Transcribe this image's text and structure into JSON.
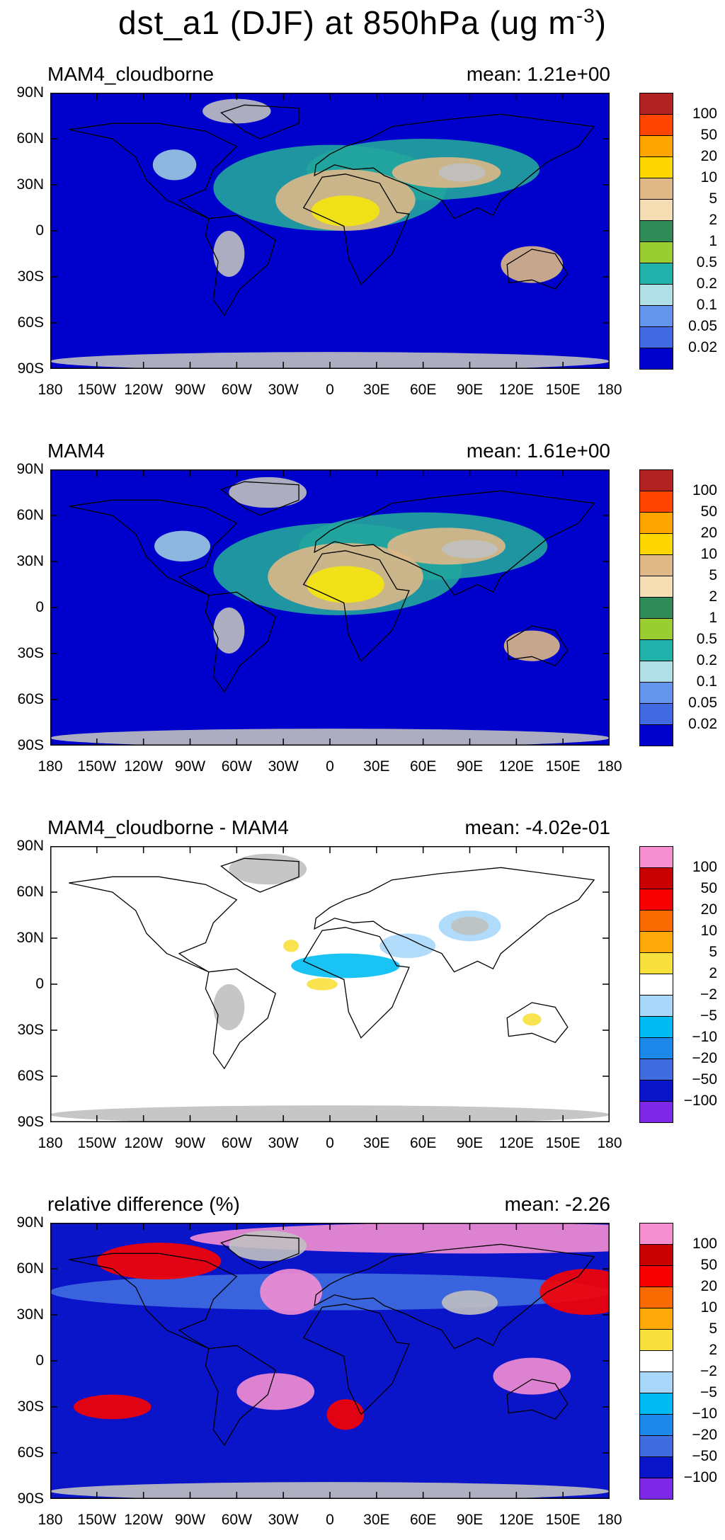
{
  "figure": {
    "title_main": "dst_a1 (DJF) at 850hPa (ug m",
    "title_exp": "-3",
    "title_close": ")"
  },
  "panels": [
    {
      "title": "MAM4_cloudborne",
      "mean": "mean:  1.21e+00",
      "palette": "concentration",
      "blobs": [
        {
          "lon": -60,
          "lat": 78,
          "rx": 22,
          "ry": 8,
          "color": "#c0c0c0"
        },
        {
          "lon": -100,
          "lat": 43,
          "rx": 14,
          "ry": 10,
          "color": "#9ccbe0"
        },
        {
          "lon": 0,
          "lat": 28,
          "rx": 75,
          "ry": 28,
          "color": "#22a59d"
        },
        {
          "lon": 60,
          "lat": 40,
          "rx": 75,
          "ry": 20,
          "color": "#22a59d"
        },
        {
          "lon": 10,
          "lat": 20,
          "rx": 45,
          "ry": 20,
          "color": "#ddb887"
        },
        {
          "lon": 75,
          "lat": 38,
          "rx": 35,
          "ry": 10,
          "color": "#ddb887"
        },
        {
          "lon": 10,
          "lat": 13,
          "rx": 22,
          "ry": 10,
          "color": "#f5e60b"
        },
        {
          "lon": 85,
          "lat": 38,
          "rx": 15,
          "ry": 6,
          "color": "#c0c0c0"
        },
        {
          "lon": 130,
          "lat": -22,
          "rx": 20,
          "ry": 12,
          "color": "#ddb887"
        },
        {
          "lon": -65,
          "lat": -15,
          "rx": 10,
          "ry": 15,
          "color": "#c0c0c0"
        },
        {
          "lon": 0,
          "lat": -85,
          "rx": 180,
          "ry": 6,
          "color": "#c0c0c0"
        }
      ]
    },
    {
      "title": "MAM4",
      "mean": "mean:  1.61e+00",
      "palette": "concentration",
      "blobs": [
        {
          "lon": -40,
          "lat": 75,
          "rx": 25,
          "ry": 10,
          "color": "#c0c0c0"
        },
        {
          "lon": -95,
          "lat": 40,
          "rx": 18,
          "ry": 10,
          "color": "#9ccbe0"
        },
        {
          "lon": 5,
          "lat": 25,
          "rx": 80,
          "ry": 30,
          "color": "#22a59d"
        },
        {
          "lon": 60,
          "lat": 40,
          "rx": 80,
          "ry": 22,
          "color": "#22a59d"
        },
        {
          "lon": 10,
          "lat": 20,
          "rx": 50,
          "ry": 22,
          "color": "#ddb887"
        },
        {
          "lon": 75,
          "lat": 40,
          "rx": 38,
          "ry": 12,
          "color": "#ddb887"
        },
        {
          "lon": 10,
          "lat": 15,
          "rx": 25,
          "ry": 12,
          "color": "#f5e60b"
        },
        {
          "lon": 90,
          "lat": 38,
          "rx": 18,
          "ry": 6,
          "color": "#c0c0c0"
        },
        {
          "lon": 130,
          "lat": -25,
          "rx": 18,
          "ry": 10,
          "color": "#ddb887"
        },
        {
          "lon": -65,
          "lat": -15,
          "rx": 10,
          "ry": 15,
          "color": "#c0c0c0"
        },
        {
          "lon": 0,
          "lat": -85,
          "rx": 180,
          "ry": 6,
          "color": "#c0c0c0"
        }
      ]
    },
    {
      "title": "MAM4_cloudborne - MAM4",
      "mean": "mean:  -4.02e-01",
      "palette": "difference",
      "blobs": [
        {
          "lon": -40,
          "lat": 75,
          "rx": 25,
          "ry": 10,
          "color": "#c0c0c0"
        },
        {
          "lon": 90,
          "lat": 38,
          "rx": 20,
          "ry": 10,
          "color": "#a9d7fa"
        },
        {
          "lon": 10,
          "lat": 12,
          "rx": 35,
          "ry": 8,
          "color": "#00bcf2"
        },
        {
          "lon": 50,
          "lat": 25,
          "rx": 18,
          "ry": 8,
          "color": "#a9d7fa"
        },
        {
          "lon": -25,
          "lat": 25,
          "rx": 5,
          "ry": 4,
          "color": "#f8e13c"
        },
        {
          "lon": -5,
          "lat": 0,
          "rx": 10,
          "ry": 4,
          "color": "#f8e13c"
        },
        {
          "lon": 130,
          "lat": -23,
          "rx": 6,
          "ry": 4,
          "color": "#f8e13c"
        },
        {
          "lon": 90,
          "lat": 38,
          "rx": 12,
          "ry": 6,
          "color": "#c0c0c0"
        },
        {
          "lon": -65,
          "lat": -15,
          "rx": 10,
          "ry": 15,
          "color": "#c0c0c0"
        },
        {
          "lon": 0,
          "lat": -85,
          "rx": 180,
          "ry": 6,
          "color": "#c0c0c0"
        }
      ]
    },
    {
      "title": "relative difference (%)",
      "mean": "mean:  -2.26",
      "palette": "difference",
      "blobs": [
        {
          "lon": 90,
          "lat": 80,
          "rx": 180,
          "ry": 10,
          "color": "#f48ed1"
        },
        {
          "lon": -40,
          "lat": 75,
          "rx": 25,
          "ry": 10,
          "color": "#c0c0c0"
        },
        {
          "lon": 0,
          "lat": 45,
          "rx": 180,
          "ry": 12,
          "color": "#3f6de0"
        },
        {
          "lon": -110,
          "lat": 65,
          "rx": 40,
          "ry": 12,
          "color": "#f80000"
        },
        {
          "lon": 165,
          "lat": 45,
          "rx": 30,
          "ry": 15,
          "color": "#f80000"
        },
        {
          "lon": -25,
          "lat": 45,
          "rx": 20,
          "ry": 15,
          "color": "#f48ed1"
        },
        {
          "lon": -35,
          "lat": -20,
          "rx": 25,
          "ry": 12,
          "color": "#f48ed1"
        },
        {
          "lon": 130,
          "lat": -10,
          "rx": 25,
          "ry": 12,
          "color": "#f48ed1"
        },
        {
          "lon": 10,
          "lat": -35,
          "rx": 12,
          "ry": 10,
          "color": "#f80000"
        },
        {
          "lon": -140,
          "lat": -30,
          "rx": 25,
          "ry": 8,
          "color": "#f80000"
        },
        {
          "lon": 90,
          "lat": 38,
          "rx": 18,
          "ry": 8,
          "color": "#c0c0c0"
        },
        {
          "lon": 0,
          "lat": -85,
          "rx": 180,
          "ry": 6,
          "color": "#c0c0c0"
        }
      ]
    }
  ],
  "axes": {
    "lat_labels": [
      "90N",
      "60N",
      "30N",
      "0",
      "30S",
      "60S",
      "90S"
    ],
    "lat_values": [
      90,
      60,
      30,
      0,
      -30,
      -60,
      -90
    ],
    "lon_labels": [
      "180",
      "150W",
      "120W",
      "90W",
      "60W",
      "30W",
      "0",
      "30E",
      "60E",
      "90E",
      "120E",
      "150E",
      "180"
    ],
    "lon_values": [
      -180,
      -150,
      -120,
      -90,
      -60,
      -30,
      0,
      30,
      60,
      90,
      120,
      150,
      180
    ]
  },
  "legends": {
    "concentration": {
      "labels": [
        "100",
        "50",
        "20",
        "10",
        "5",
        "2",
        "1",
        "0.5",
        "0.2",
        "0.1",
        "0.05",
        "0.02"
      ],
      "colors": [
        "#b22222",
        "#ff4500",
        "#ffa500",
        "#ffd700",
        "#deb887",
        "#f5deb3",
        "#2e8b57",
        "#9acd32",
        "#20b2aa",
        "#b0e0e6",
        "#6495ed",
        "#4169e1",
        "#0000cd"
      ]
    },
    "difference": {
      "labels": [
        "100",
        "50",
        "20",
        "10",
        "5",
        "2",
        "−2",
        "−5",
        "−10",
        "−20",
        "−50",
        "−100"
      ],
      "colors": [
        "#f48ed1",
        "#c80000",
        "#f80000",
        "#f96b00",
        "#fda90a",
        "#f8e13c",
        "#ffffff",
        "#a9d7fa",
        "#00bcf2",
        "#1c88ea",
        "#3f6de0",
        "#0a14c8",
        "#7d28e6"
      ]
    }
  },
  "chart_data": {
    "type": "heatmap",
    "projection": "cylindrical equidistant",
    "title": "dst_a1 (DJF) at 850hPa (ug m-3)",
    "x_axis": {
      "range": [
        -180,
        180
      ],
      "ticks": [
        "180",
        "150W",
        "120W",
        "90W",
        "60W",
        "30W",
        "0",
        "30E",
        "60E",
        "90E",
        "120E",
        "150E",
        "180"
      ]
    },
    "y_axis": {
      "range": [
        -90,
        90
      ],
      "ticks": [
        "90N",
        "60N",
        "30N",
        "0",
        "30S",
        "60S",
        "90S"
      ]
    },
    "panels": [
      {
        "name": "MAM4_cloudborne",
        "mean": 1.21,
        "contour_levels": [
          0.02,
          0.05,
          0.1,
          0.2,
          0.5,
          1,
          2,
          5,
          10,
          20,
          50,
          100
        ]
      },
      {
        "name": "MAM4",
        "mean": 1.61,
        "contour_levels": [
          0.02,
          0.05,
          0.1,
          0.2,
          0.5,
          1,
          2,
          5,
          10,
          20,
          50,
          100
        ]
      },
      {
        "name": "MAM4_cloudborne - MAM4",
        "mean": -0.402,
        "contour_levels": [
          -100,
          -50,
          -20,
          -10,
          -5,
          -2,
          2,
          5,
          10,
          20,
          50,
          100
        ]
      },
      {
        "name": "relative difference (%)",
        "mean": -2.26,
        "contour_levels": [
          -100,
          -50,
          -20,
          -10,
          -5,
          -2,
          2,
          5,
          10,
          20,
          50,
          100
        ]
      }
    ]
  }
}
